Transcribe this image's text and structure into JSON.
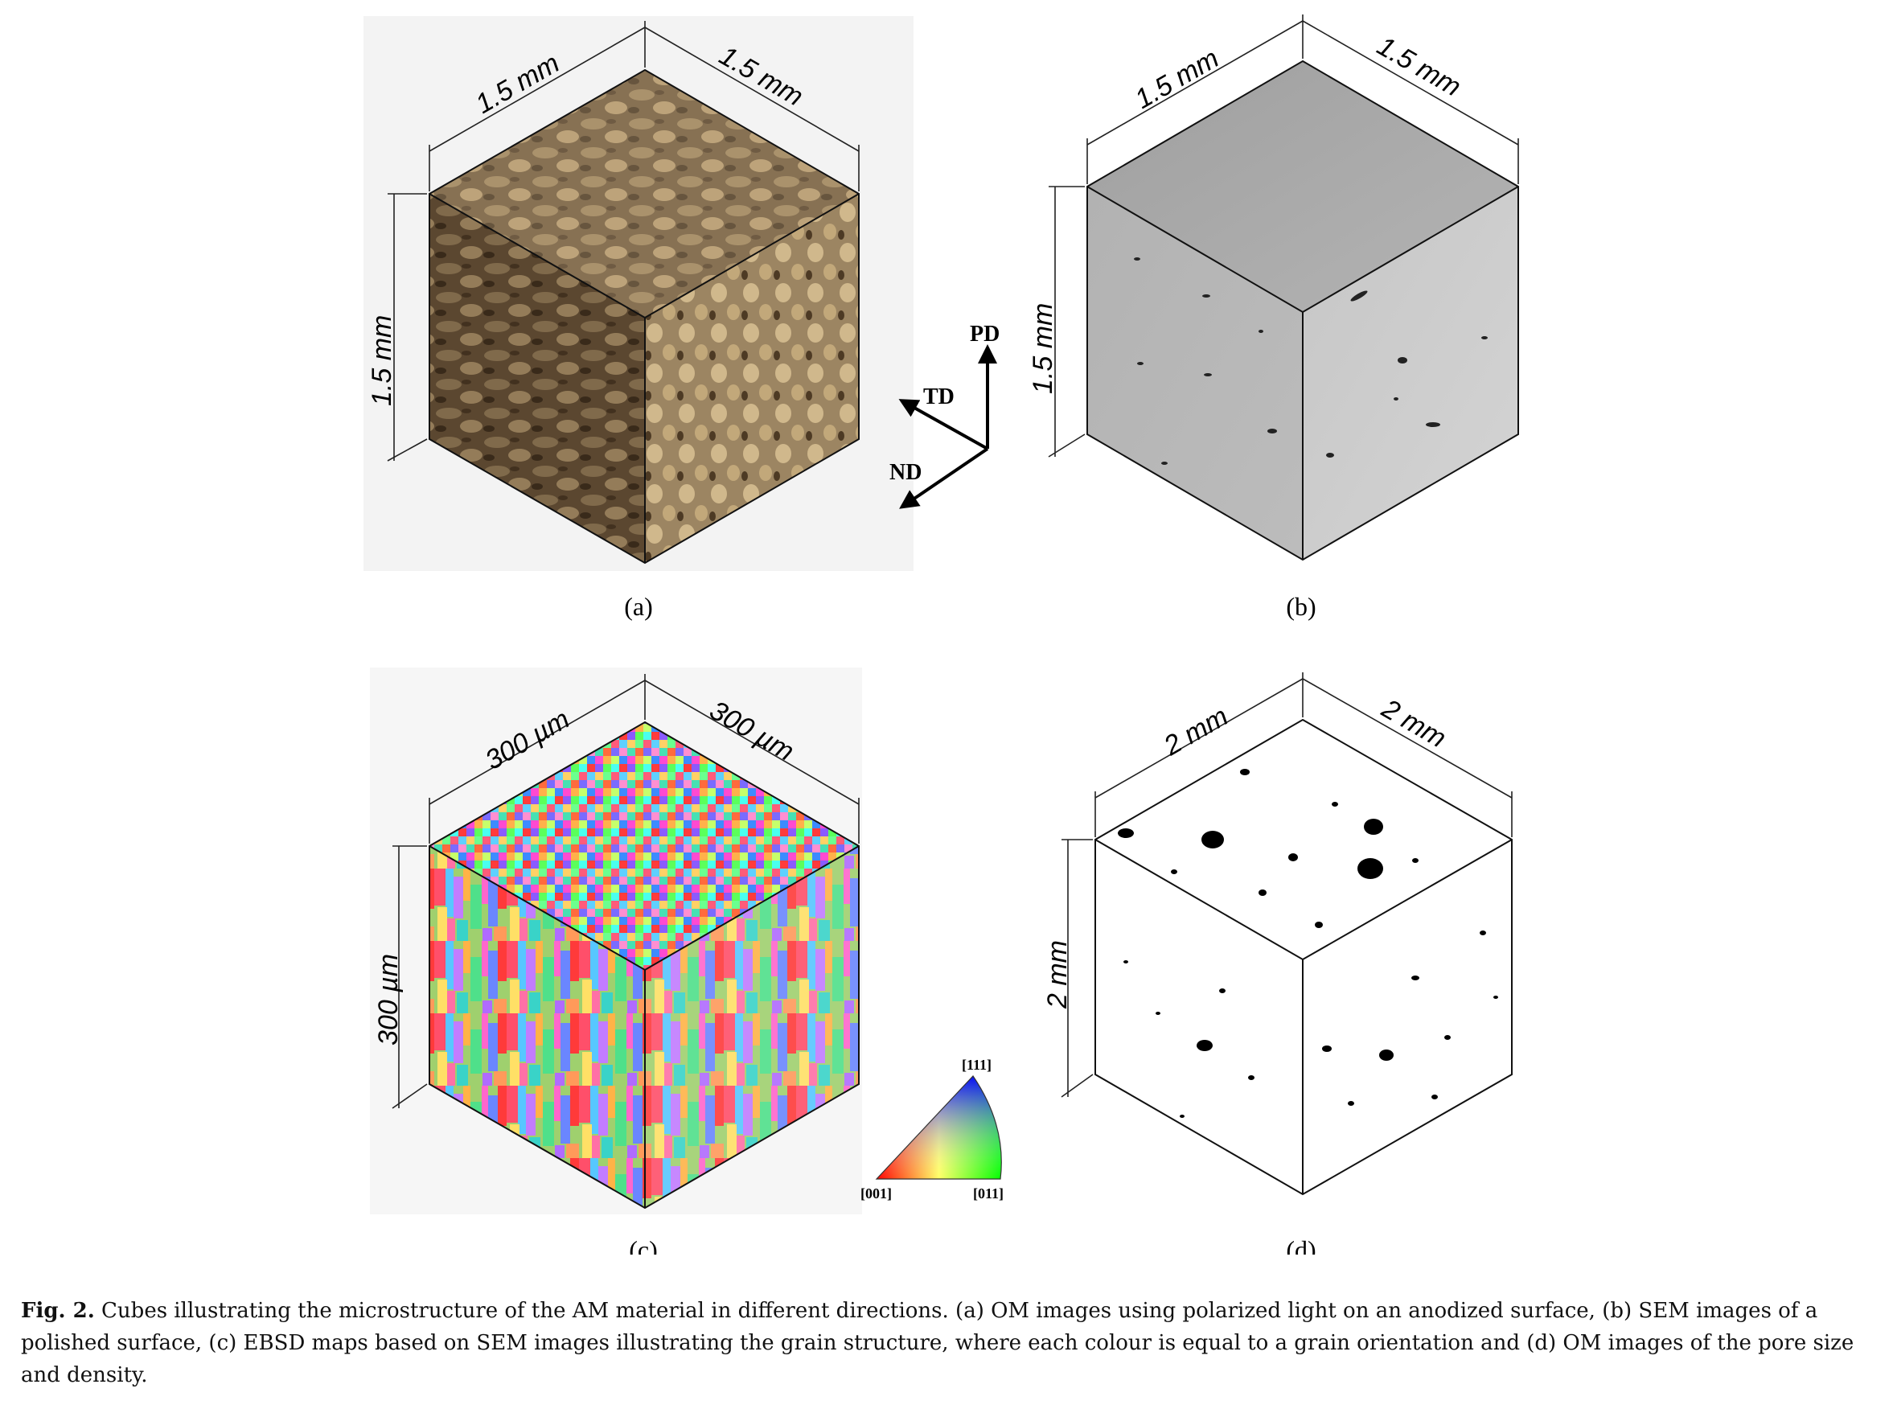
{
  "panels": {
    "a": {
      "label": "(a)",
      "dim_top_left": "1.5 mm",
      "dim_top_right": "1.5 mm",
      "dim_side": "1.5 mm",
      "texture": "optical-micrograph-brown"
    },
    "b": {
      "label": "(b)",
      "dim_top_left": "1.5 mm",
      "dim_top_right": "1.5 mm",
      "dim_side": "1.5 mm",
      "texture": "sem-grey"
    },
    "c": {
      "label": "(c)",
      "dim_top_left": "300 µm",
      "dim_top_right": "300 µm",
      "dim_side": "300 µm",
      "texture": "ebsd-colour-map"
    },
    "d": {
      "label": "(d)",
      "dim_top_left": "2 mm",
      "dim_top_right": "2 mm",
      "dim_side": "2 mm",
      "texture": "binary-pores"
    }
  },
  "axes": {
    "pd": "PD",
    "td": "TD",
    "nd": "ND"
  },
  "ipf_legend": {
    "top": "[111]",
    "left": "[001]",
    "right": "[011]",
    "colors": {
      "c001": "#ff0000",
      "c011": "#00ff00",
      "c111": "#0000ff"
    }
  },
  "caption": {
    "figno": "Fig. 2.",
    "text": "Cubes illustrating the microstructure of the AM material in different directions. (a) OM images using polarized light on an anodized surface, (b) SEM images of a polished surface, (c) EBSD maps based on SEM images illustrating the grain structure, where each colour is equal to a grain orientation and (d) OM images of the pore size and density."
  },
  "colors": {
    "om_top": "#8a7458",
    "om_left": "#5d4832",
    "om_right": "#a58e68",
    "sem_top": "#aaaaaa",
    "sem_left": "#b6b6b6",
    "sem_right": "#c4c4c4"
  }
}
